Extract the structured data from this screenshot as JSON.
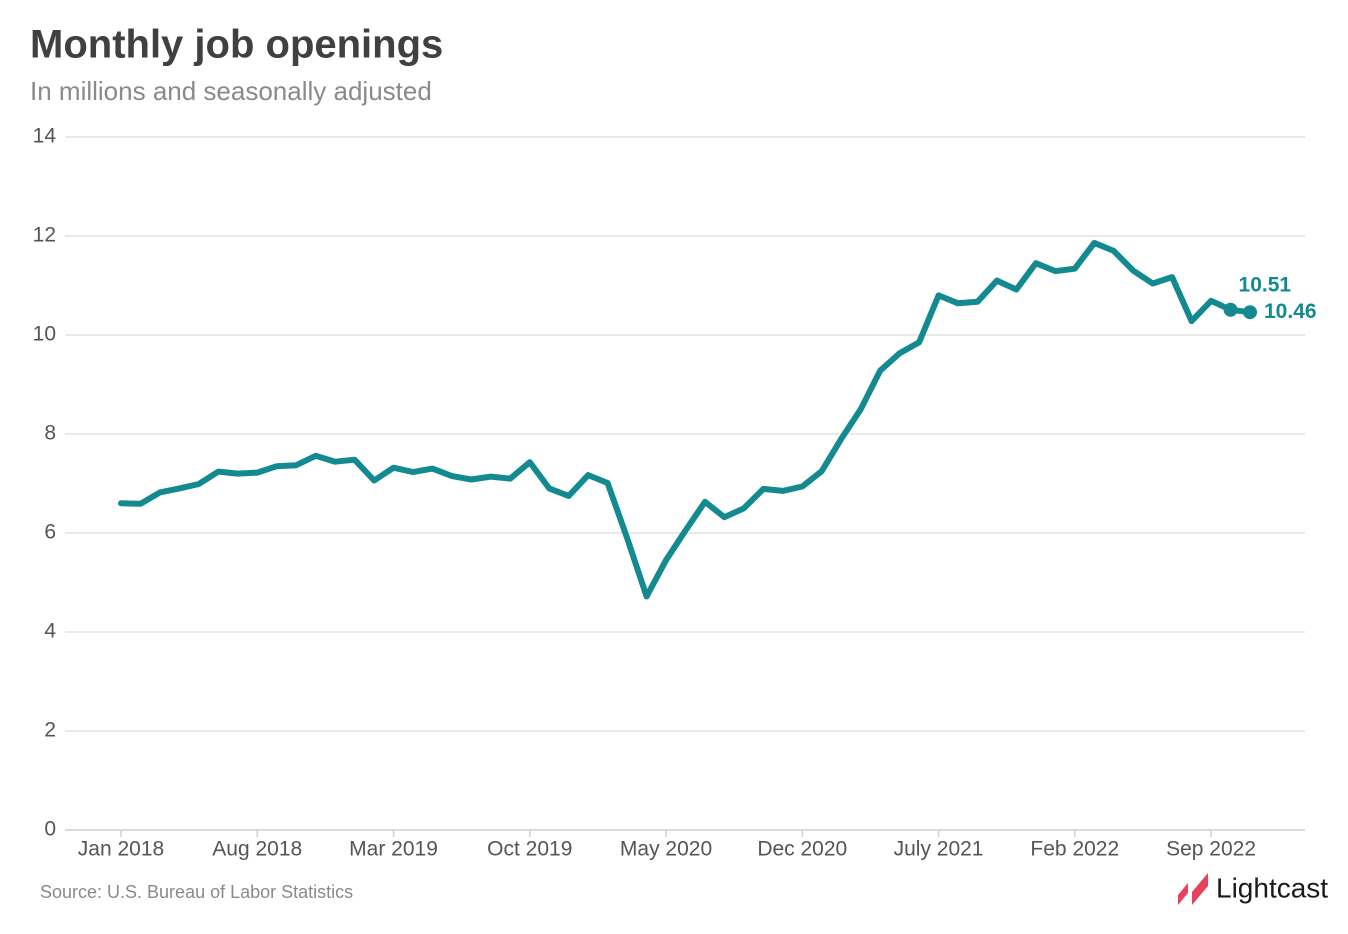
{
  "chart_data": {
    "type": "line",
    "title": "Monthly job openings",
    "subtitle": "In millions and seasonally adjusted",
    "source": "Source:  U.S. Bureau of Labor Statistics",
    "brand": "Lightcast",
    "categories": [
      "Jan 2018",
      null,
      null,
      null,
      null,
      null,
      null,
      "Aug 2018",
      null,
      null,
      null,
      null,
      null,
      null,
      "Mar 2019",
      null,
      null,
      null,
      null,
      null,
      null,
      "Oct 2019",
      null,
      null,
      null,
      null,
      null,
      null,
      "May 2020",
      null,
      null,
      null,
      null,
      null,
      null,
      "Dec 2020",
      null,
      null,
      null,
      null,
      null,
      null,
      "July 2021",
      null,
      null,
      null,
      null,
      null,
      null,
      "Feb 2022",
      null,
      null,
      null,
      null,
      null,
      null,
      "Sep 2022",
      null,
      null
    ],
    "values": [
      6.6,
      6.59,
      6.82,
      6.9,
      6.99,
      7.24,
      7.2,
      7.22,
      7.35,
      7.37,
      7.56,
      7.44,
      7.48,
      7.06,
      7.32,
      7.23,
      7.3,
      7.15,
      7.08,
      7.14,
      7.1,
      7.43,
      6.9,
      6.75,
      7.17,
      7.01,
      5.9,
      4.72,
      5.45,
      6.05,
      6.63,
      6.32,
      6.5,
      6.89,
      6.85,
      6.94,
      7.25,
      7.9,
      8.5,
      9.28,
      9.63,
      9.85,
      10.8,
      10.64,
      10.67,
      11.1,
      10.92,
      11.45,
      11.29,
      11.34,
      11.86,
      11.7,
      11.3,
      11.04,
      11.17,
      10.28,
      10.69,
      10.51,
      10.46
    ],
    "color": "#138a8f",
    "ylim": [
      0,
      14
    ],
    "yticks": [
      0,
      2,
      4,
      6,
      8,
      10,
      12,
      14
    ],
    "grid": true
  }
}
